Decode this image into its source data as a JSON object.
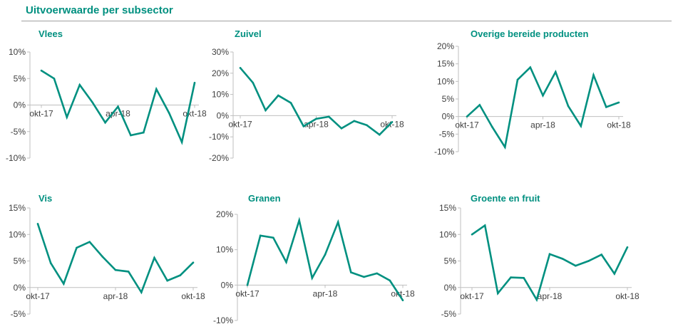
{
  "page_title": "Uitvoerwaarde per subsector",
  "colors": {
    "line": "#009080",
    "title": "#009080",
    "axis": "#bfbfbf",
    "text": "#404040"
  },
  "chart_data": [
    {
      "type": "line",
      "title": "Vlees",
      "x": [
        "okt-17",
        "nov-17",
        "dec-17",
        "jan-18",
        "feb-18",
        "mrt-18",
        "apr-18",
        "mei-18",
        "jun-18",
        "jul-18",
        "aug-18",
        "sep-18",
        "okt-18"
      ],
      "x_tick_labels": [
        "okt-17",
        "apr-18",
        "okt-18"
      ],
      "y_tick_labels": [
        "10%",
        "5%",
        "0%",
        "-5%",
        "-10%"
      ],
      "ylim": [
        -10,
        10
      ],
      "values": [
        6.5,
        5,
        -2.3,
        3.8,
        0.5,
        -3.3,
        -0.3,
        -5.7,
        -5.2,
        3,
        -1.5,
        -7,
        4.2
      ]
    },
    {
      "type": "line",
      "title": "Zuivel",
      "x": [
        "okt-17",
        "nov-17",
        "dec-17",
        "jan-18",
        "feb-18",
        "mrt-18",
        "apr-18",
        "mei-18",
        "jun-18",
        "jul-18",
        "aug-18",
        "sep-18",
        "okt-18"
      ],
      "x_tick_labels": [
        "okt-17",
        "apr-18",
        "okt-18"
      ],
      "y_tick_labels": [
        "30%",
        "20%",
        "10%",
        "0%",
        "-10%",
        "-20%"
      ],
      "ylim": [
        -20,
        30
      ],
      "values": [
        22.5,
        15.5,
        2.5,
        9.5,
        6,
        -5,
        -1.5,
        -0.5,
        -6,
        -2.5,
        -4.5,
        -9,
        -3
      ]
    },
    {
      "type": "line",
      "title": "Overige bereide producten",
      "x": [
        "okt-17",
        "nov-17",
        "dec-17",
        "jan-18",
        "feb-18",
        "mrt-18",
        "apr-18",
        "mei-18",
        "jun-18",
        "jul-18",
        "aug-18",
        "sep-18",
        "okt-18"
      ],
      "x_tick_labels": [
        "okt-17",
        "apr-18",
        "okt-18"
      ],
      "y_tick_labels": [
        "20%",
        "15%",
        "10%",
        "5%",
        "0%",
        "-5%",
        "-10%"
      ],
      "ylim": [
        -10,
        20
      ],
      "values": [
        0,
        3.3,
        -3,
        -8.7,
        10.5,
        14,
        6,
        12.7,
        3,
        -2.7,
        11.8,
        2.7,
        4
      ]
    },
    {
      "type": "line",
      "title": "Vis",
      "x": [
        "okt-17",
        "nov-17",
        "dec-17",
        "jan-18",
        "feb-18",
        "mrt-18",
        "apr-18",
        "mei-18",
        "jun-18",
        "jul-18",
        "aug-18",
        "sep-18",
        "okt-18"
      ],
      "x_tick_labels": [
        "okt-17",
        "apr-18",
        "okt-18"
      ],
      "y_tick_labels": [
        "15%",
        "10%",
        "5%",
        "0%",
        "-5%"
      ],
      "ylim": [
        -5,
        15
      ],
      "values": [
        12,
        4.6,
        0.7,
        7.5,
        8.6,
        5.8,
        3.3,
        3,
        -0.9,
        5.6,
        1.3,
        2.3,
        4.7
      ]
    },
    {
      "type": "line",
      "title": "Granen",
      "x": [
        "okt-17",
        "nov-17",
        "dec-17",
        "jan-18",
        "feb-18",
        "mrt-18",
        "apr-18",
        "mei-18",
        "jun-18",
        "jul-18",
        "aug-18",
        "sep-18",
        "okt-18"
      ],
      "x_tick_labels": [
        "okt-17",
        "apr-18",
        "okt-18"
      ],
      "y_tick_labels": [
        "20%",
        "10%",
        "0%",
        "-10%"
      ],
      "ylim": [
        -10,
        20
      ],
      "values": [
        0,
        14,
        13.4,
        6.5,
        18.3,
        2,
        8.6,
        17.8,
        3.6,
        2.3,
        3.3,
        1.3,
        -4.3
      ]
    },
    {
      "type": "line",
      "title": "Groente en fruit",
      "x": [
        "okt-17",
        "nov-17",
        "dec-17",
        "jan-18",
        "feb-18",
        "mrt-18",
        "apr-18",
        "mei-18",
        "jun-18",
        "jul-18",
        "aug-18",
        "sep-18",
        "okt-18"
      ],
      "x_tick_labels": [
        "okt-17",
        "apr-18",
        "okt-18"
      ],
      "y_tick_labels": [
        "15%",
        "10%",
        "5%",
        "0%",
        "-5%"
      ],
      "ylim": [
        -5,
        15
      ],
      "values": [
        10,
        11.7,
        -1.1,
        1.9,
        1.8,
        -2.3,
        6.3,
        5.4,
        4.1,
        5,
        6.2,
        2.6,
        7.6
      ]
    }
  ]
}
